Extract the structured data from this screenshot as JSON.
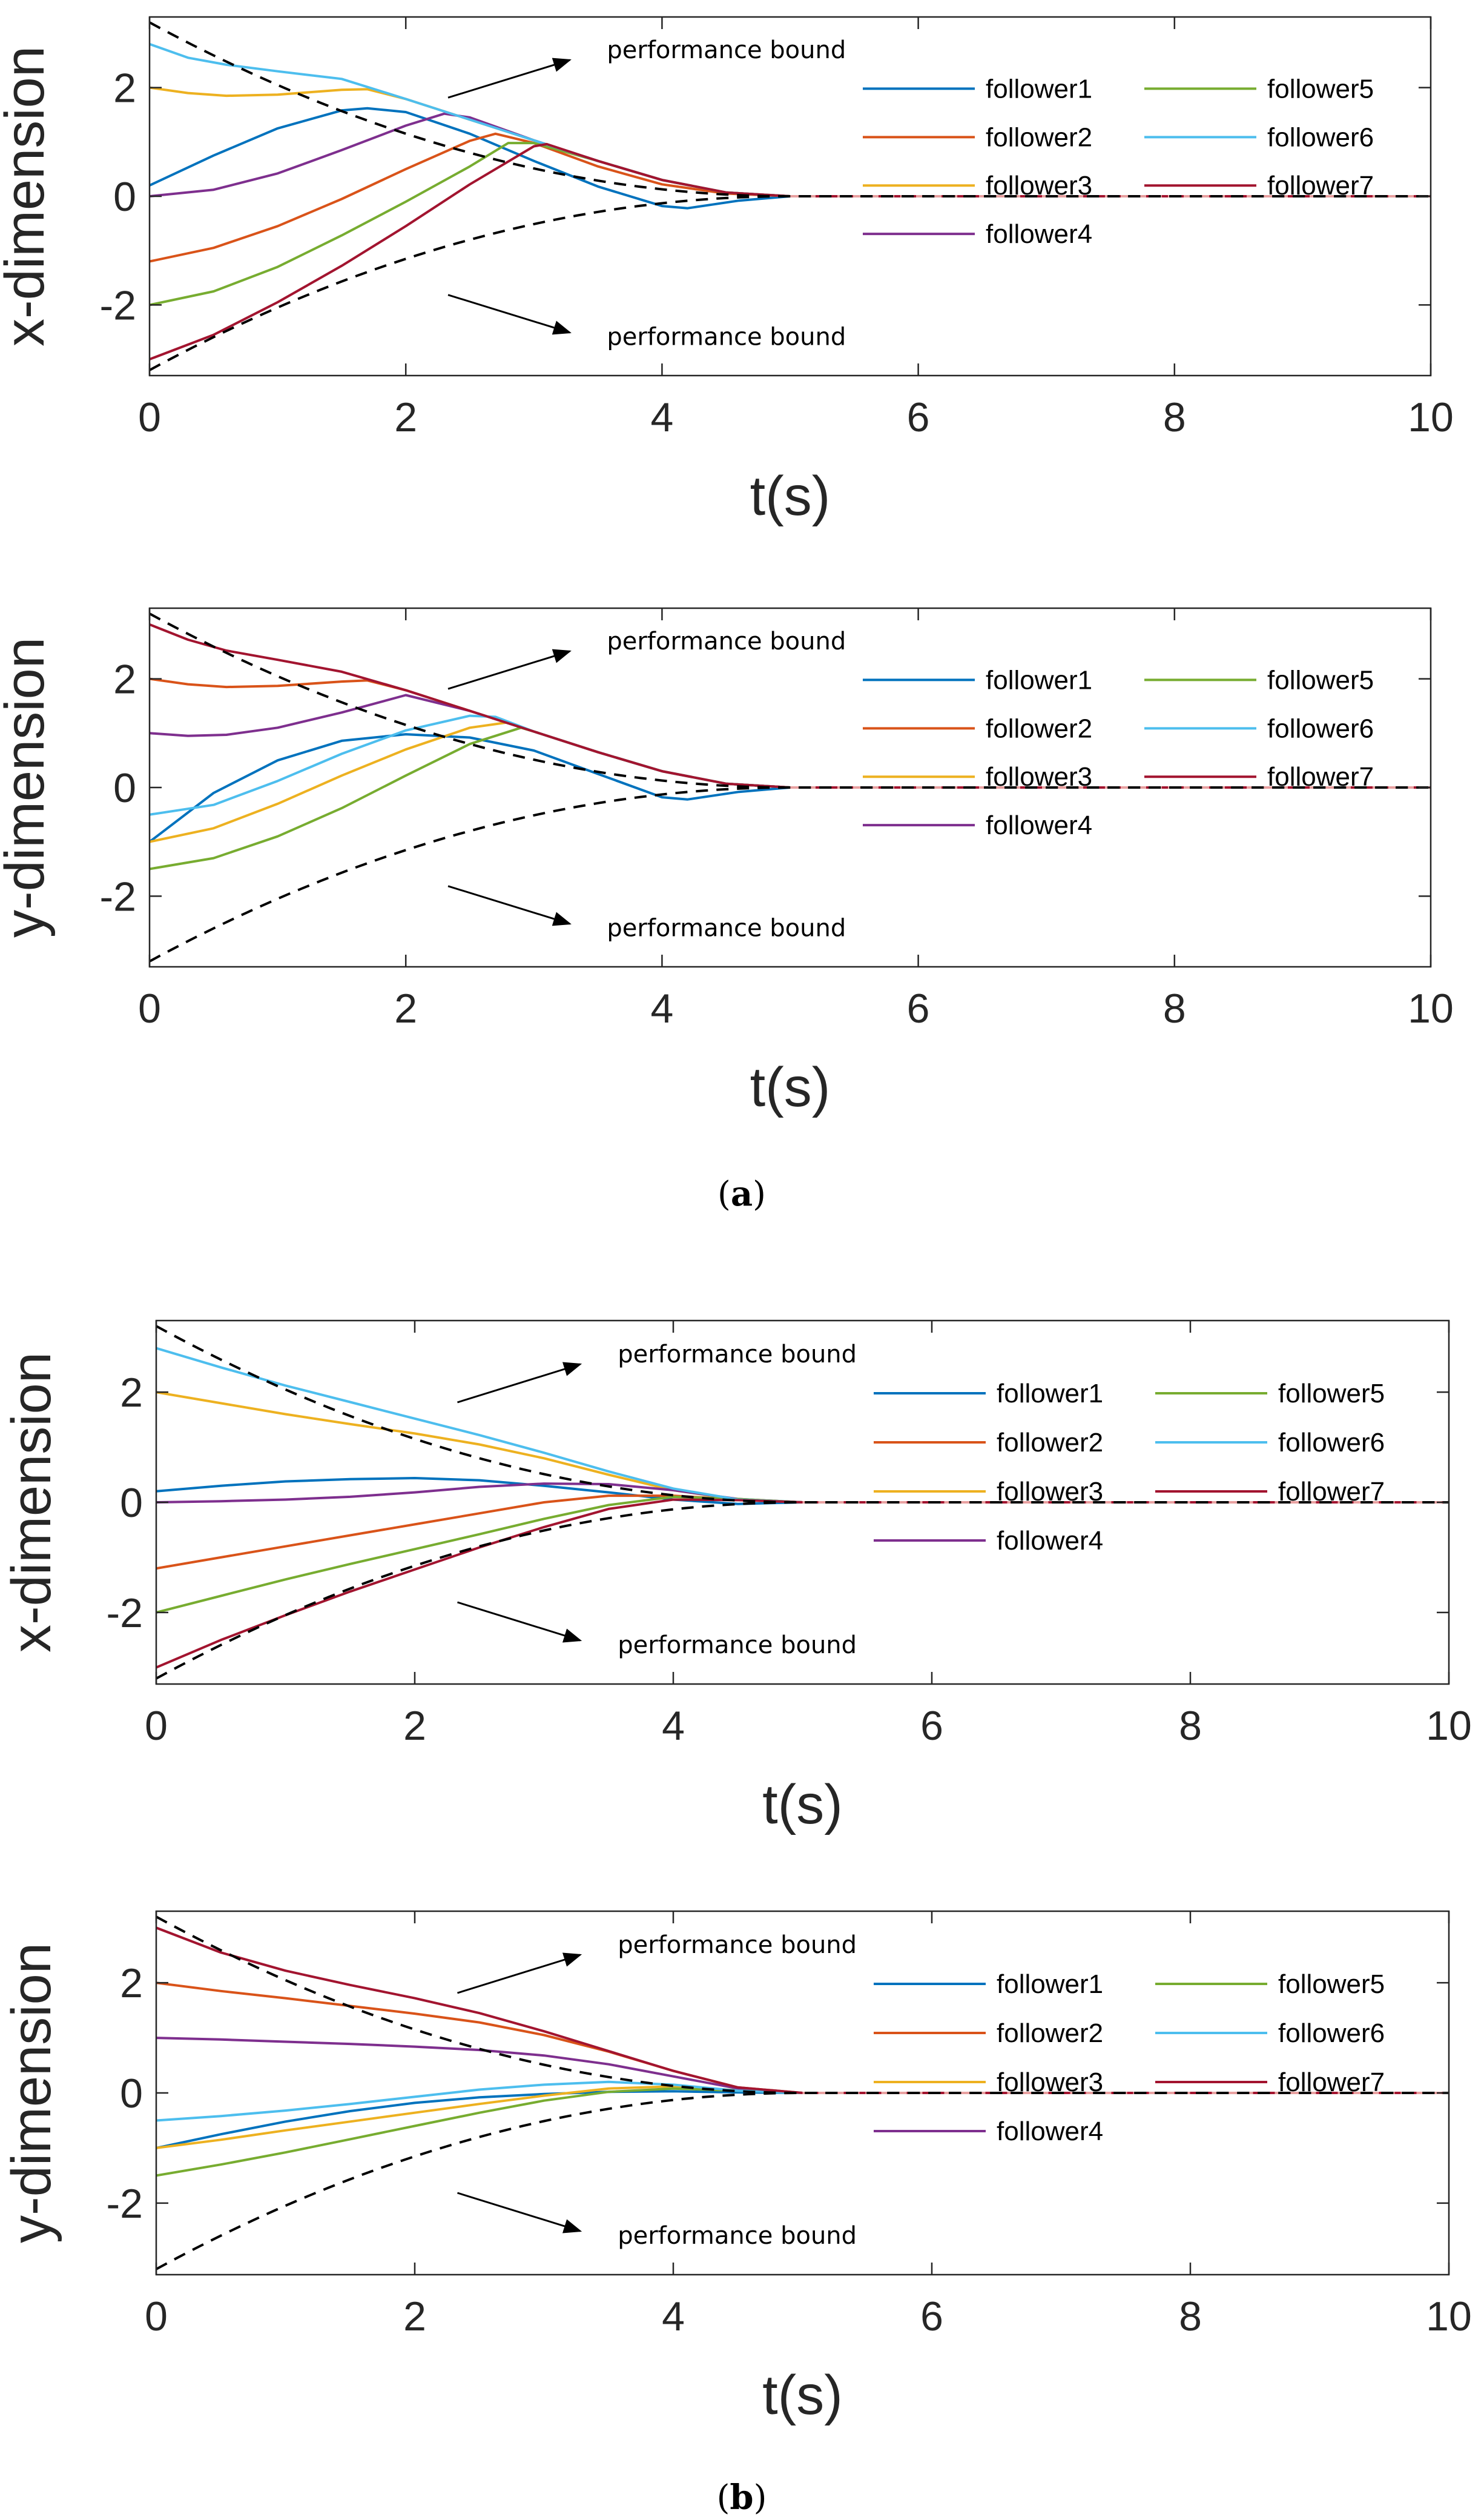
{
  "figure": {
    "subcaptions": [
      {
        "text_open": "(",
        "letter": "a",
        "text_close": ")"
      },
      {
        "text_open": "(",
        "letter": "b",
        "text_close": ")"
      }
    ]
  },
  "colors": {
    "follower1": "#0072BD",
    "follower2": "#D95319",
    "follower3": "#EDB120",
    "follower4": "#7E2F8E",
    "follower5": "#77AC30",
    "follower6": "#4DBEEE",
    "follower7": "#A2142F",
    "bound": "#000000",
    "leader": "#E8A0A0"
  },
  "chart_data": [
    {
      "id": "a-x",
      "type": "line",
      "panel": "a",
      "xlabel": "t(s)",
      "ylabel": "x-dimension",
      "xlim": [
        0,
        10
      ],
      "ylim": [
        -3.3,
        3.3
      ],
      "xticks": [
        "0",
        "2",
        "4",
        "6",
        "8",
        "10"
      ],
      "yticks": [
        "-2",
        "0",
        "2"
      ],
      "bound": {
        "rho0": 3.2,
        "settle_time": 5
      },
      "annotations": [
        "performance bound",
        "performance bound"
      ],
      "series": [
        {
          "name": "follower1",
          "x": [
            0,
            0.5,
            1,
            1.5,
            1.7,
            2,
            2.5,
            3,
            3.5,
            4,
            4.2,
            4.6,
            5,
            10
          ],
          "values": [
            0.2,
            0.75,
            1.25,
            1.58,
            1.62,
            1.55,
            1.15,
            0.65,
            0.18,
            -0.18,
            -0.22,
            -0.08,
            0,
            0
          ]
        },
        {
          "name": "follower2",
          "x": [
            0,
            0.5,
            1,
            1.5,
            2,
            2.5,
            2.7,
            3,
            3.5,
            4,
            4.5,
            5,
            10
          ],
          "values": [
            -1.2,
            -0.95,
            -0.55,
            -0.05,
            0.5,
            1.02,
            1.15,
            0.98,
            0.55,
            0.22,
            0.05,
            0,
            0
          ]
        },
        {
          "name": "follower3",
          "x": [
            0,
            0.3,
            0.6,
            1,
            1.5,
            1.7,
            2,
            2.5,
            3,
            3.5,
            4,
            4.5,
            5,
            10
          ],
          "values": [
            2.0,
            1.9,
            1.85,
            1.87,
            1.96,
            1.97,
            1.79,
            1.41,
            1.03,
            0.65,
            0.3,
            0.07,
            0,
            0
          ]
        },
        {
          "name": "follower4",
          "x": [
            0,
            0.5,
            1,
            1.5,
            2,
            2.3,
            2.5,
            3,
            3.5,
            4,
            4.5,
            5,
            10
          ],
          "values": [
            0,
            0.12,
            0.42,
            0.85,
            1.3,
            1.52,
            1.45,
            1.03,
            0.65,
            0.3,
            0.07,
            0,
            0
          ]
        },
        {
          "name": "follower5",
          "x": [
            0,
            0.5,
            1,
            1.5,
            2,
            2.5,
            2.8,
            3,
            3.5,
            4,
            4.5,
            5,
            10
          ],
          "values": [
            -2.0,
            -1.75,
            -1.3,
            -0.72,
            -0.1,
            0.55,
            0.98,
            0.98,
            0.65,
            0.3,
            0.07,
            0,
            0
          ]
        },
        {
          "name": "follower6",
          "x": [
            0,
            0.3,
            0.6,
            1,
            1.5,
            2,
            2.5,
            3,
            3.5,
            4,
            4.5,
            5,
            10
          ],
          "values": [
            2.8,
            2.55,
            2.42,
            2.3,
            2.16,
            1.79,
            1.41,
            1.03,
            0.65,
            0.3,
            0.07,
            0,
            0
          ]
        },
        {
          "name": "follower7",
          "x": [
            0,
            0.5,
            1,
            1.5,
            2,
            2.5,
            3,
            3.1,
            3.5,
            4,
            4.5,
            5,
            10
          ],
          "values": [
            -3.0,
            -2.55,
            -1.95,
            -1.28,
            -0.55,
            0.22,
            0.92,
            0.96,
            0.65,
            0.3,
            0.07,
            0,
            0
          ]
        }
      ]
    },
    {
      "id": "a-y",
      "type": "line",
      "panel": "a",
      "xlabel": "t(s)",
      "ylabel": "y-dimension",
      "xlim": [
        0,
        10
      ],
      "ylim": [
        -3.3,
        3.3
      ],
      "xticks": [
        "0",
        "2",
        "4",
        "6",
        "8",
        "10"
      ],
      "yticks": [
        "-2",
        "0",
        "2"
      ],
      "bound": {
        "rho0": 3.2,
        "settle_time": 5
      },
      "annotations": [
        "performance bound",
        "performance bound"
      ],
      "series": [
        {
          "name": "follower1",
          "x": [
            0,
            0.5,
            1,
            1.5,
            2,
            2.5,
            3,
            3.5,
            4,
            4.2,
            4.6,
            5,
            10
          ],
          "values": [
            -1.0,
            -0.1,
            0.5,
            0.86,
            0.98,
            0.92,
            0.68,
            0.25,
            -0.18,
            -0.22,
            -0.08,
            0,
            0
          ]
        },
        {
          "name": "follower2",
          "x": [
            0,
            0.3,
            0.6,
            1,
            1.5,
            1.7,
            2,
            2.5,
            3,
            3.5,
            4,
            4.5,
            5,
            10
          ],
          "values": [
            2.0,
            1.9,
            1.85,
            1.87,
            1.95,
            1.97,
            1.79,
            1.41,
            1.03,
            0.65,
            0.3,
            0.07,
            0,
            0
          ]
        },
        {
          "name": "follower3",
          "x": [
            0,
            0.5,
            1,
            1.5,
            2,
            2.5,
            2.8,
            3,
            3.5,
            4,
            4.5,
            5,
            10
          ],
          "values": [
            -1.0,
            -0.75,
            -0.3,
            0.22,
            0.7,
            1.1,
            1.2,
            1.03,
            0.65,
            0.3,
            0.07,
            0,
            0
          ]
        },
        {
          "name": "follower4",
          "x": [
            0,
            0.3,
            0.6,
            1,
            1.5,
            2,
            2.5,
            3,
            3.5,
            4,
            4.5,
            5,
            10
          ],
          "values": [
            1.0,
            0.95,
            0.97,
            1.1,
            1.38,
            1.7,
            1.41,
            1.03,
            0.65,
            0.3,
            0.07,
            0,
            0
          ]
        },
        {
          "name": "follower5",
          "x": [
            0,
            0.5,
            1,
            1.5,
            2,
            2.5,
            2.9,
            3,
            3.5,
            4,
            4.5,
            5,
            10
          ],
          "values": [
            -1.5,
            -1.3,
            -0.9,
            -0.38,
            0.22,
            0.8,
            1.1,
            1.03,
            0.65,
            0.3,
            0.07,
            0,
            0
          ]
        },
        {
          "name": "follower6",
          "x": [
            0,
            0.5,
            1,
            1.5,
            2,
            2.5,
            2.7,
            3,
            3.5,
            4,
            4.5,
            5,
            10
          ],
          "values": [
            -0.5,
            -0.32,
            0.12,
            0.62,
            1.05,
            1.32,
            1.3,
            1.03,
            0.65,
            0.3,
            0.07,
            0,
            0
          ]
        },
        {
          "name": "follower7",
          "x": [
            0,
            0.3,
            0.6,
            1,
            1.5,
            2,
            2.5,
            3,
            3.5,
            4,
            4.5,
            5,
            10
          ],
          "values": [
            3.0,
            2.72,
            2.52,
            2.35,
            2.13,
            1.79,
            1.41,
            1.03,
            0.65,
            0.3,
            0.07,
            0,
            0
          ]
        }
      ]
    },
    {
      "id": "b-x",
      "type": "line",
      "panel": "b",
      "xlabel": "t(s)",
      "ylabel": "x-dimension",
      "xlim": [
        0,
        10
      ],
      "ylim": [
        -3.3,
        3.3
      ],
      "xticks": [
        "0",
        "2",
        "4",
        "6",
        "8",
        "10"
      ],
      "yticks": [
        "-2",
        "0",
        "2"
      ],
      "bound": {
        "rho0": 3.2,
        "settle_time": 5
      },
      "annotations": [
        "performance bound",
        "performance bound"
      ],
      "series": [
        {
          "name": "follower1",
          "x": [
            0,
            0.5,
            1,
            1.5,
            2,
            2.5,
            3,
            3.5,
            4,
            4.5,
            5,
            10
          ],
          "values": [
            0.2,
            0.3,
            0.38,
            0.42,
            0.44,
            0.4,
            0.3,
            0.18,
            0.05,
            -0.03,
            0,
            0
          ]
        },
        {
          "name": "follower2",
          "x": [
            0,
            0.5,
            1,
            1.5,
            2,
            2.5,
            3,
            3.5,
            4,
            4.5,
            5,
            10
          ],
          "values": [
            -1.2,
            -1.0,
            -0.8,
            -0.6,
            -0.4,
            -0.2,
            0.0,
            0.12,
            0.12,
            0.05,
            0,
            0
          ]
        },
        {
          "name": "follower3",
          "x": [
            0,
            0.5,
            1,
            1.5,
            2,
            2.5,
            3,
            3.5,
            4,
            4.5,
            5,
            10
          ],
          "values": [
            2.0,
            1.8,
            1.6,
            1.42,
            1.25,
            1.05,
            0.8,
            0.5,
            0.22,
            0.05,
            0,
            0
          ]
        },
        {
          "name": "follower4",
          "x": [
            0,
            0.5,
            1,
            1.5,
            2,
            2.5,
            3,
            3.5,
            4,
            4.5,
            5,
            10
          ],
          "values": [
            0.0,
            0.02,
            0.05,
            0.1,
            0.18,
            0.28,
            0.34,
            0.33,
            0.22,
            0.06,
            0,
            0
          ]
        },
        {
          "name": "follower5",
          "x": [
            0,
            0.5,
            1,
            1.5,
            2,
            2.5,
            3,
            3.5,
            4,
            4.5,
            5,
            10
          ],
          "values": [
            -2.0,
            -1.7,
            -1.4,
            -1.12,
            -0.85,
            -0.58,
            -0.3,
            -0.05,
            0.1,
            0.06,
            0,
            0
          ]
        },
        {
          "name": "follower6",
          "x": [
            0,
            0.5,
            1,
            1.5,
            2,
            2.5,
            3,
            3.5,
            4,
            4.5,
            5,
            10
          ],
          "values": [
            2.8,
            2.45,
            2.12,
            1.82,
            1.52,
            1.22,
            0.9,
            0.56,
            0.25,
            0.05,
            0,
            0
          ]
        },
        {
          "name": "follower7",
          "x": [
            0,
            0.5,
            1,
            1.5,
            2,
            2.5,
            3,
            3.5,
            4,
            4.5,
            5,
            10
          ],
          "values": [
            -3.0,
            -2.5,
            -2.05,
            -1.62,
            -1.22,
            -0.82,
            -0.45,
            -0.12,
            0.05,
            0.04,
            0,
            0
          ]
        }
      ]
    },
    {
      "id": "b-y",
      "type": "line",
      "panel": "b",
      "xlabel": "t(s)",
      "ylabel": "y-dimension",
      "xlim": [
        0,
        10
      ],
      "ylim": [
        -3.3,
        3.3
      ],
      "xticks": [
        "0",
        "2",
        "4",
        "6",
        "8",
        "10"
      ],
      "yticks": [
        "-2",
        "0",
        "2"
      ],
      "bound": {
        "rho0": 3.2,
        "settle_time": 5
      },
      "annotations": [
        "performance bound",
        "performance bound"
      ],
      "series": [
        {
          "name": "follower1",
          "x": [
            0,
            0.5,
            1,
            1.5,
            2,
            2.5,
            3,
            3.5,
            4,
            4.5,
            5,
            10
          ],
          "values": [
            -1.0,
            -0.75,
            -0.52,
            -0.33,
            -0.18,
            -0.08,
            -0.02,
            0.02,
            0.03,
            0.01,
            0,
            0
          ]
        },
        {
          "name": "follower2",
          "x": [
            0,
            0.5,
            1,
            1.5,
            2,
            2.5,
            3,
            3.5,
            4,
            4.5,
            5,
            10
          ],
          "values": [
            2.0,
            1.85,
            1.72,
            1.58,
            1.44,
            1.28,
            1.05,
            0.75,
            0.4,
            0.1,
            0,
            0
          ]
        },
        {
          "name": "follower3",
          "x": [
            0,
            0.5,
            1,
            1.5,
            2,
            2.5,
            3,
            3.5,
            4,
            4.5,
            5,
            10
          ],
          "values": [
            -1.0,
            -0.85,
            -0.68,
            -0.52,
            -0.36,
            -0.2,
            -0.05,
            0.08,
            0.12,
            0.05,
            0,
            0
          ]
        },
        {
          "name": "follower4",
          "x": [
            0,
            0.5,
            1,
            1.5,
            2,
            2.5,
            3,
            3.5,
            4,
            4.5,
            5,
            10
          ],
          "values": [
            1.0,
            0.97,
            0.93,
            0.89,
            0.84,
            0.78,
            0.68,
            0.52,
            0.3,
            0.08,
            0,
            0
          ]
        },
        {
          "name": "follower5",
          "x": [
            0,
            0.5,
            1,
            1.5,
            2,
            2.5,
            3,
            3.5,
            4,
            4.5,
            5,
            10
          ],
          "values": [
            -1.5,
            -1.3,
            -1.08,
            -0.84,
            -0.6,
            -0.36,
            -0.14,
            0.02,
            0.08,
            0.04,
            0,
            0
          ]
        },
        {
          "name": "follower6",
          "x": [
            0,
            0.5,
            1,
            1.5,
            2,
            2.5,
            3,
            3.5,
            4,
            4.5,
            5,
            10
          ],
          "values": [
            -0.5,
            -0.42,
            -0.32,
            -0.2,
            -0.07,
            0.06,
            0.15,
            0.2,
            0.15,
            0.04,
            0,
            0
          ]
        },
        {
          "name": "follower7",
          "x": [
            0,
            0.5,
            1,
            1.5,
            2,
            2.5,
            3,
            3.5,
            4,
            4.5,
            5,
            10
          ],
          "values": [
            3.0,
            2.55,
            2.22,
            1.96,
            1.72,
            1.45,
            1.12,
            0.76,
            0.4,
            0.1,
            0,
            0
          ]
        }
      ]
    }
  ]
}
